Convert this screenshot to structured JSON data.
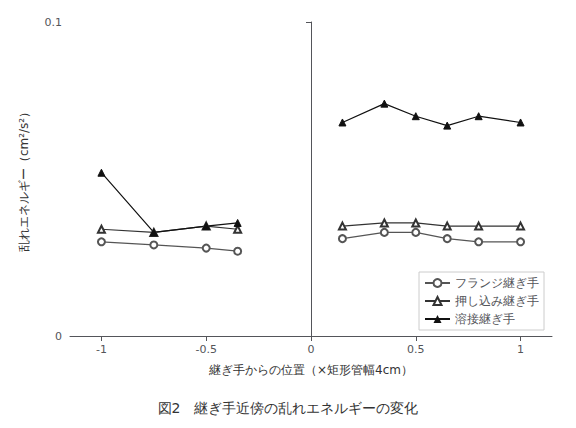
{
  "chart_data": {
    "type": "line",
    "title": "図2　継ぎ手近傍の乱れエネルギーの変化",
    "x_label": "継ぎ手からの位置（×矩形管幅4cm）",
    "y_label": "乱れエネルギー（cm²/s²）",
    "xlim": [
      -1.15,
      1.15
    ],
    "xticks": [
      -1,
      -0.5,
      0,
      0.5,
      1
    ],
    "ylim": [
      0,
      0.1
    ],
    "yticks": [
      0,
      0.1
    ],
    "grid": false,
    "legend": "lower right",
    "series": [
      {
        "name": "フランジ継ぎ手",
        "color": "#555555",
        "marker": "empty_circle",
        "x": [
          -1.0,
          -0.75,
          -0.5,
          -0.35,
          null,
          0.15,
          0.35,
          0.5,
          0.65,
          0.8,
          1.0
        ],
        "values": [
          0.03,
          0.029,
          0.028,
          0.027,
          null,
          0.031,
          0.033,
          0.033,
          0.031,
          0.03,
          0.03
        ]
      },
      {
        "name": "押し込み継ぎ手",
        "color": "#333333",
        "marker": "empty_triangle",
        "x": [
          -1.0,
          -0.75,
          -0.5,
          -0.35,
          null,
          0.15,
          0.35,
          0.5,
          0.65,
          0.8,
          1.0
        ],
        "values": [
          0.034,
          0.033,
          0.035,
          0.034,
          null,
          0.035,
          0.036,
          0.036,
          0.035,
          0.035,
          0.035
        ]
      },
      {
        "name": "溶接継ぎ手",
        "color": "#111111",
        "marker": "triangle",
        "x": [
          -1.0,
          -0.75,
          -0.5,
          -0.35,
          null,
          0.15,
          0.35,
          0.5,
          0.65,
          0.8,
          1.0
        ],
        "values": [
          0.052,
          0.033,
          0.035,
          0.036,
          null,
          0.068,
          0.074,
          0.07,
          0.067,
          0.07,
          0.068
        ]
      }
    ]
  }
}
